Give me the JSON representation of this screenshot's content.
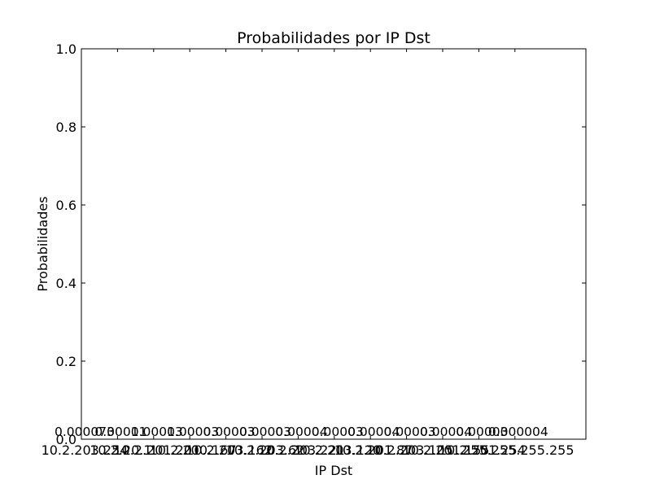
{
  "chart_data": {
    "type": "bar",
    "title": "Probabilidades por IP Dst",
    "xlabel": "IP Dst",
    "ylabel": "Probabilidades",
    "ylim": [
      0,
      1.0
    ],
    "yticks": [
      "0.0",
      "0.2",
      "0.4",
      "0.6",
      "0.8",
      "1.0"
    ],
    "grid": false,
    "categories": [
      "10.2.203.254",
      "10.2.20.1",
      "10.2.201.201",
      "10.2.200.167",
      "10.2.203.162",
      "10.2.203.62",
      "10.2.203.221",
      "10.2.203.120",
      "10.2.201.87",
      "10.2.203.105",
      "10.2.201.155",
      "10.2.201.254",
      "255.255.255.255"
    ],
    "values": [
      7.3e-05,
      0.00011,
      0.00013,
      3e-05,
      3e-05,
      3e-05,
      4e-05,
      3e-05,
      4e-05,
      3e-05,
      4e-05,
      3e-05,
      4e-06
    ],
    "value_labels": [
      "0.000073",
      "0.00011",
      "0.00013",
      "0.00003",
      "0.00003",
      "0.00003",
      "0.00004",
      "0.00003",
      "0.00004",
      "0.00003",
      "0.00004",
      "0.00003",
      "0.000004"
    ]
  }
}
